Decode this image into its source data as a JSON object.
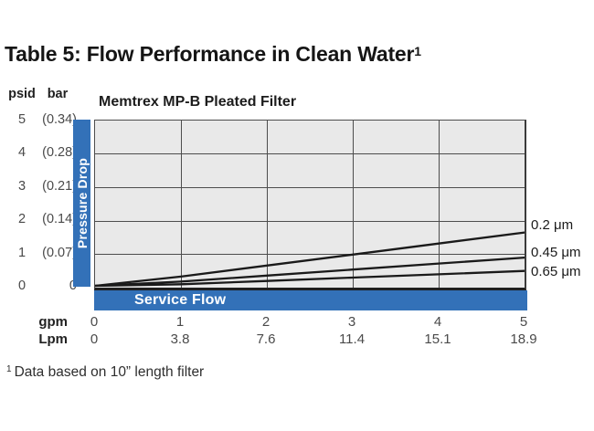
{
  "header": {
    "title": "Table 5: Flow Performance in Clean Water",
    "footnote_ref": "1"
  },
  "chart": {
    "title": "Memtrex MP-B Pleated Filter",
    "y_axis": {
      "unit_primary": "psid",
      "unit_secondary": "bar",
      "bar_label": "Pressure Drop",
      "ticks": [
        {
          "psid": "5",
          "bar": "(0.34)"
        },
        {
          "psid": "4",
          "bar": "(0.28)"
        },
        {
          "psid": "3",
          "bar": "(0.21)"
        },
        {
          "psid": "2",
          "bar": "(0.14)"
        },
        {
          "psid": "1",
          "bar": "(0.07)"
        },
        {
          "psid": "0",
          "bar": "0"
        }
      ]
    },
    "x_axis": {
      "bar_label": "Service Flow",
      "unit_gpm": "gpm",
      "unit_lpm": "Lpm",
      "gpm_values": [
        "0",
        "1",
        "2",
        "3",
        "4",
        "5"
      ],
      "lpm_values": [
        "0",
        "3.8",
        "7.6",
        "11.4",
        "15.1",
        "18.9"
      ]
    },
    "line_labels": [
      "0.2 μm",
      "0.45 μm",
      "0.65 μm"
    ]
  },
  "chart_data": {
    "type": "line",
    "title": "Memtrex MP-B Pleated Filter",
    "xlabel": "Service Flow",
    "ylabel": "Pressure Drop",
    "x_gpm": [
      0,
      1,
      2,
      3,
      4,
      5
    ],
    "x_lpm": [
      0,
      3.8,
      7.6,
      11.4,
      15.1,
      18.9
    ],
    "xlim_gpm": [
      0,
      5
    ],
    "ylim_psid": [
      0,
      5
    ],
    "ylim_bar": [
      0,
      0.34
    ],
    "grid": true,
    "legend_position": "right-of-plot",
    "series": [
      {
        "name": "0.2 μm",
        "values_psid": [
          0,
          0.33,
          0.66,
          0.99,
          1.32,
          1.65
        ]
      },
      {
        "name": "0.45 μm",
        "values_psid": [
          0,
          0.18,
          0.36,
          0.54,
          0.72,
          0.9
        ]
      },
      {
        "name": "0.65 μm",
        "values_psid": [
          0,
          0.1,
          0.2,
          0.3,
          0.4,
          0.5
        ]
      }
    ]
  },
  "footnote": {
    "ref": "1",
    "text": "Data based on 10” length filter"
  },
  "colors": {
    "accent_blue": "#3371b8",
    "plot_bg": "#e9e9e9",
    "grid": "#4d4d4d",
    "line": "#1a1a1a"
  }
}
